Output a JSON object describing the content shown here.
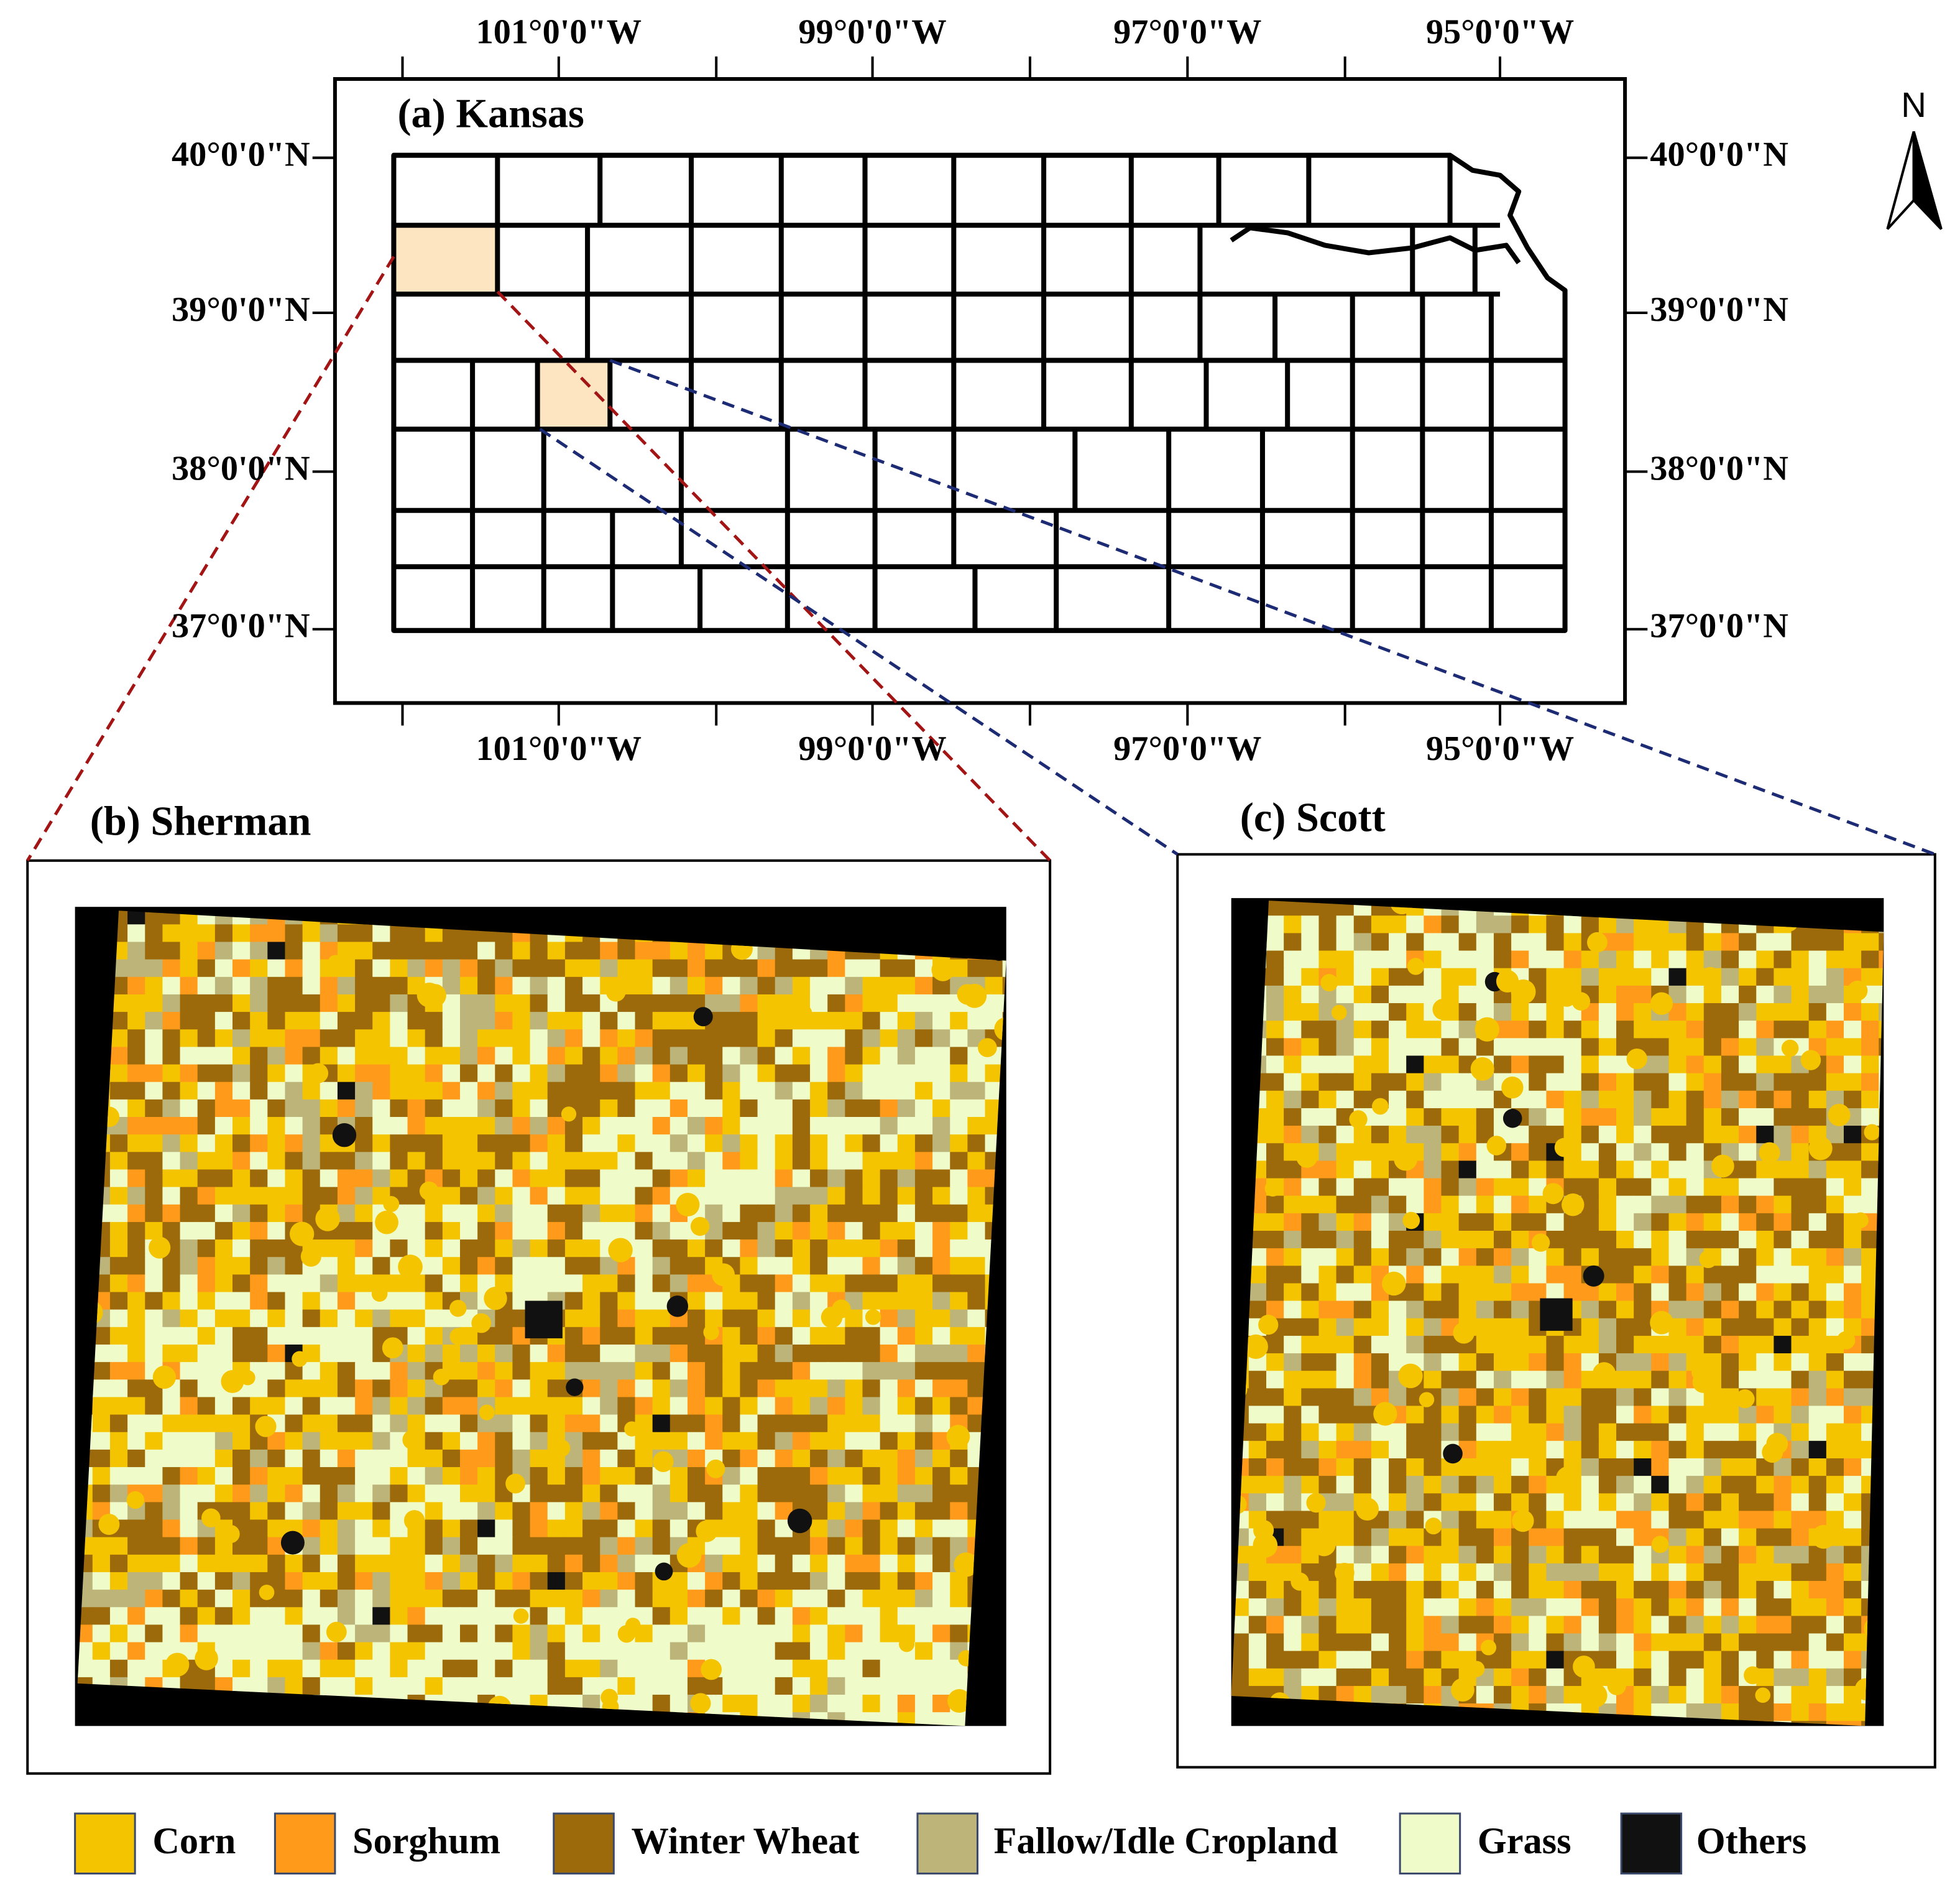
{
  "panels": [
    {
      "title": "(a) Kansas"
    },
    {
      "title": "(b) Sherman"
    },
    {
      "title": "(c) Scott"
    }
  ],
  "axes": {
    "top_labels": [
      "101°0'0\"W",
      "99°0'0\"W",
      "97°0'0\"W",
      "95°0'0\"W"
    ],
    "bottom_labels": [
      "101°0'0\"W",
      "99°0'0\"W",
      "97°0'0\"W",
      "95°0'0\"W"
    ],
    "left_labels": [
      "40°0'0\"N",
      "39°0'0\"N",
      "38°0'0\"N",
      "37°0'0\"N"
    ],
    "right_labels": [
      "40°0'0\"N",
      "39°0'0\"N",
      "38°0'0\"N",
      "37°0'0\"N"
    ]
  },
  "north": "N",
  "legend": [
    {
      "label": "Corn",
      "color": "#f5c400"
    },
    {
      "label": "Sorghum",
      "color": "#ff9a1a"
    },
    {
      "label": "Winter Wheat",
      "color": "#9c6a0a"
    },
    {
      "label": "Fallow/Idle Cropland",
      "color": "#bdb47a"
    },
    {
      "label": "Grass",
      "color": "#effcca"
    },
    {
      "label": "Others",
      "color": "#111111"
    }
  ]
}
